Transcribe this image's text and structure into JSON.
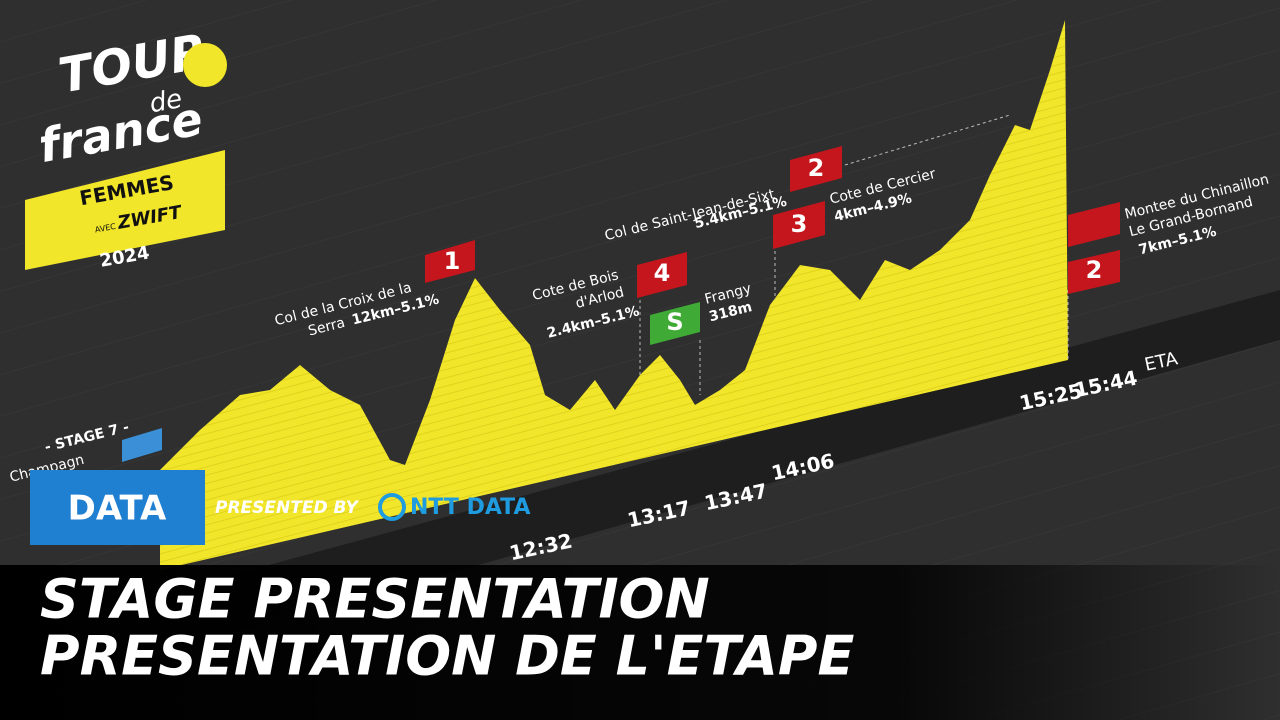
{
  "logo": {
    "brand_lines": [
      "TOUR",
      "de",
      "france"
    ],
    "edition": "FEMMES",
    "partner_prefix": "AVEC",
    "partner": "ZWIFT",
    "year": "2024"
  },
  "stage_label": "- STAGE 7 -",
  "start_label": "Champagn",
  "climbs": [
    {
      "category": "1",
      "name_lines": [
        "Col de la Croix de la",
        "Serra"
      ],
      "stats": "12km–5.1%"
    },
    {
      "category": "4",
      "name_lines": [
        "Cote de Bois",
        "d'Arlod"
      ],
      "stats": "2.4km–5.1%"
    },
    {
      "category": "2",
      "name_lines": [
        "Col de Saint-Jean-de-Sixt"
      ],
      "stats": "5.4km–5.1%"
    },
    {
      "category": "3",
      "name_lines": [
        "Cote de Cercier"
      ],
      "stats": "4km–4.9%"
    }
  ],
  "sprint": {
    "badge": "S",
    "name": "Frangy",
    "altitude": "318m"
  },
  "finish": {
    "category": "2",
    "name_lines": [
      "Montee du Chinaillon",
      "Le Grand-Bornand"
    ],
    "stats": "7km–5.1%"
  },
  "times": [
    "12:32",
    "13:17",
    "13:47",
    "14:06",
    "15:25",
    "15:44"
  ],
  "eta": "ETA",
  "banner": {
    "tag": "DATA",
    "presented_by": "PRESENTED BY",
    "sponsor": "NTT DATA",
    "title_lines": [
      "STAGE PRESENTATION",
      "PRESENTATION DE L'ETAPE"
    ]
  }
}
